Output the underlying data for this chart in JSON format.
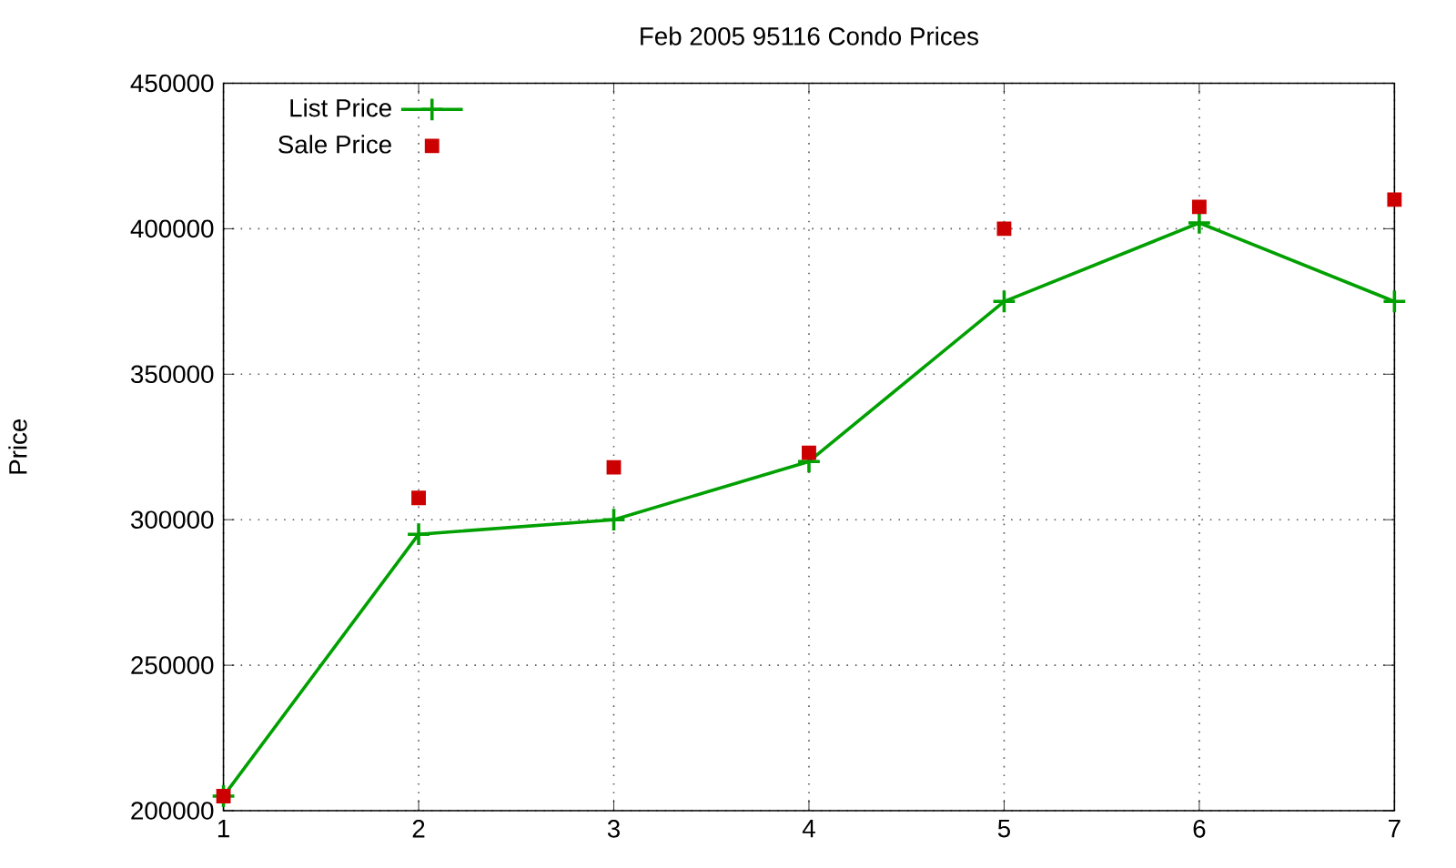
{
  "chart_data": {
    "type": "line",
    "title": "Feb 2005 95116 Condo Prices",
    "ylabel": "Price",
    "x": [
      1,
      2,
      3,
      4,
      5,
      6,
      7
    ],
    "series": [
      {
        "name": "List Price",
        "color": "#00a000",
        "marker": "cross",
        "values": [
          205000,
          295000,
          300000,
          320000,
          375000,
          402000,
          375000
        ]
      },
      {
        "name": "Sale Price",
        "type": "scatter",
        "color": "#cc0000",
        "marker": "square",
        "values": [
          205000,
          307500,
          318000,
          323000,
          400000,
          407500,
          410000
        ]
      }
    ],
    "xlim": [
      1,
      7
    ],
    "xticks": [
      1,
      2,
      3,
      4,
      5,
      6,
      7
    ],
    "ylim": [
      200000,
      450000
    ],
    "yticks": [
      200000,
      250000,
      300000,
      350000,
      400000,
      450000
    ],
    "grid": true,
    "legend": "top left"
  }
}
